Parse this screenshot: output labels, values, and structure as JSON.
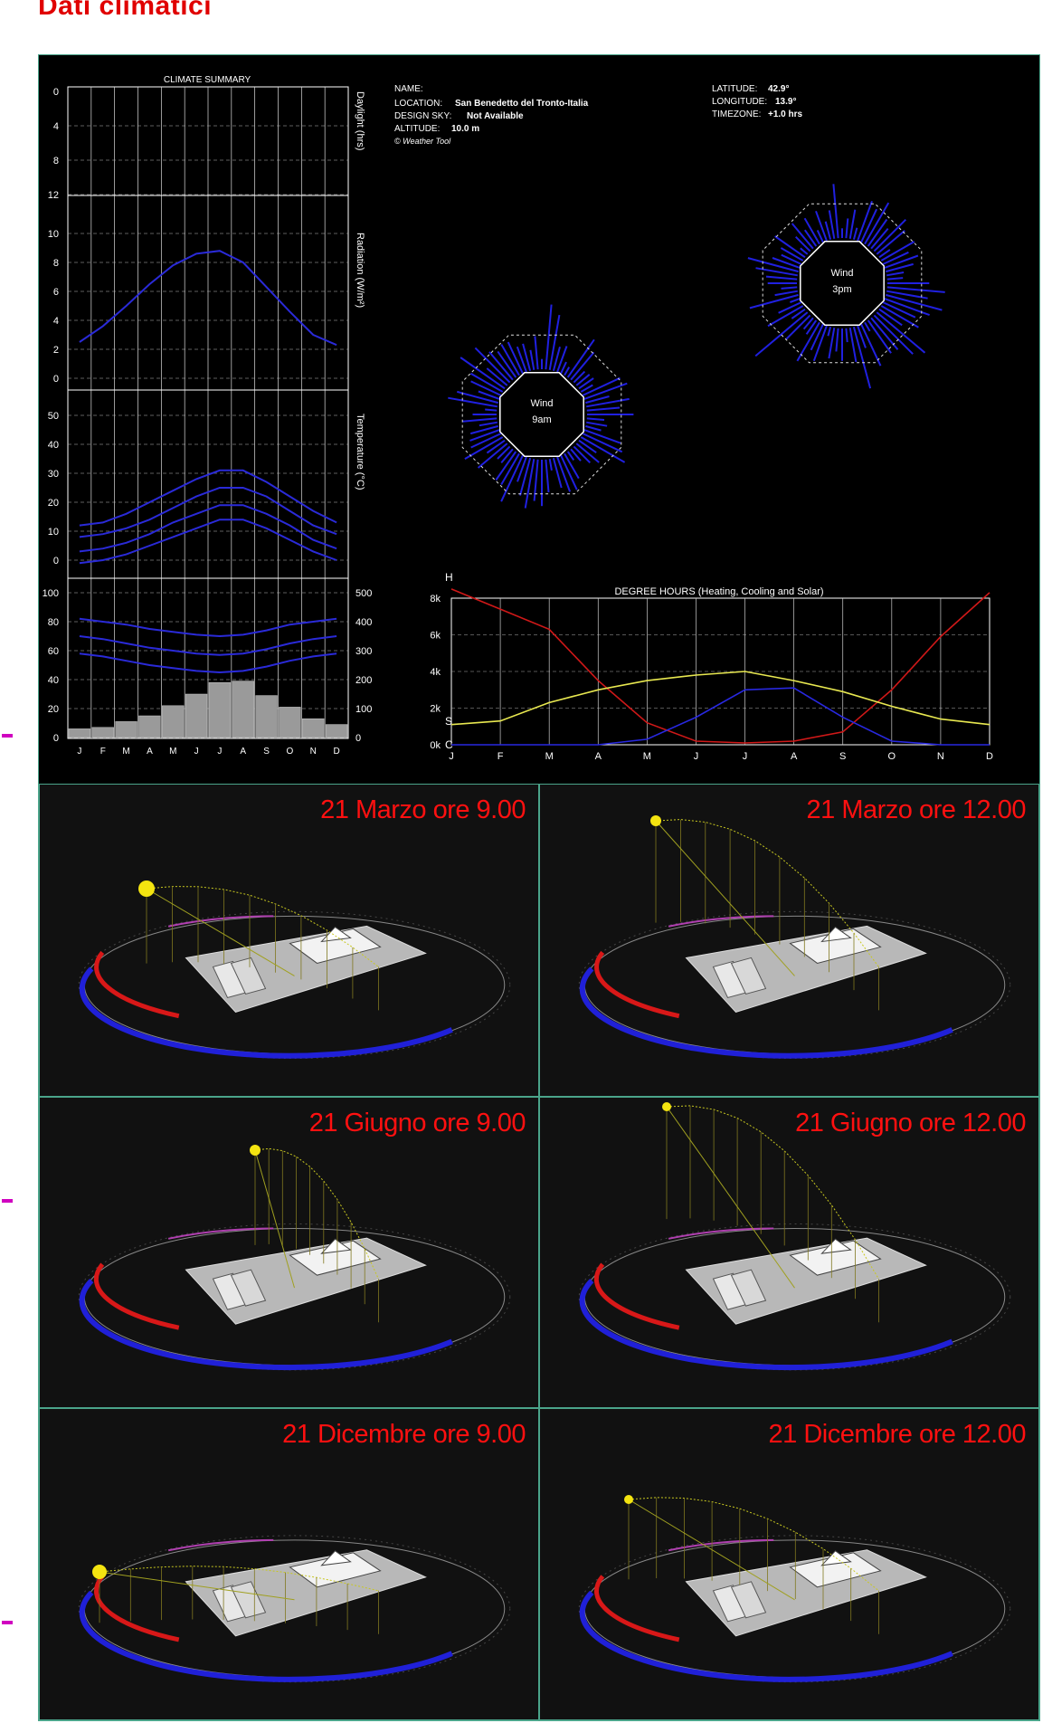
{
  "page": {
    "title": "Dati climatici"
  },
  "info": {
    "name_label": "NAME:",
    "location_label": "LOCATION:",
    "location_value": "San Benedetto del Tronto-Italia",
    "design_sky_label": "DESIGN SKY:",
    "design_sky_value": "Not Available",
    "altitude_label": "ALTITUDE:",
    "altitude_value": "10.0 m",
    "credit": "© Weather Tool",
    "latitude_label": "LATITUDE:",
    "latitude_value": "42.9°",
    "longitude_label": "LONGITUDE:",
    "longitude_value": "13.9°",
    "timezone_label": "TIMEZONE:",
    "timezone_value": "+1.0 hrs"
  },
  "climate_summary": {
    "title": "CLIMATE SUMMARY",
    "daylight_label": "Daylight (hrs)",
    "radiation_label": "Radiation (W/m²)",
    "temperature_label": "Temperature (°C)",
    "months": [
      "J",
      "F",
      "M",
      "A",
      "M",
      "J",
      "J",
      "A",
      "S",
      "O",
      "N",
      "D"
    ],
    "daylight_ticks": [
      "0",
      "4",
      "8",
      "12"
    ],
    "radiation_ticks": [
      "10",
      "8",
      "6",
      "4",
      "2",
      "0"
    ],
    "temperature_ticks": [
      "50",
      "40",
      "30",
      "20",
      "10",
      "0"
    ],
    "humidity_ticks": [
      "100",
      "80",
      "60",
      "40",
      "20",
      "0"
    ],
    "right_ticks": [
      "500",
      "400",
      "300",
      "200",
      "100",
      "0"
    ],
    "radiation_values": [
      2.5,
      3.6,
      5.0,
      6.5,
      7.8,
      8.6,
      8.8,
      8.0,
      6.3,
      4.6,
      3.0,
      2.3
    ],
    "temp_series": [
      {
        "values": [
          12,
          13,
          16,
          20,
          24,
          28,
          31,
          31,
          27,
          22,
          17,
          13
        ]
      },
      {
        "values": [
          8,
          9,
          11,
          14,
          18,
          22,
          25,
          25,
          22,
          17,
          12,
          9
        ]
      },
      {
        "values": [
          3,
          4,
          6,
          9,
          13,
          16,
          19,
          19,
          16,
          12,
          7,
          4
        ]
      },
      {
        "values": [
          -1,
          0,
          2,
          5,
          8,
          11,
          14,
          14,
          11,
          7,
          3,
          0
        ]
      }
    ],
    "humidity_series": [
      {
        "values": [
          82,
          80,
          78,
          75,
          73,
          71,
          70,
          71,
          74,
          78,
          80,
          82
        ]
      },
      {
        "values": [
          70,
          68,
          65,
          62,
          60,
          58,
          57,
          58,
          61,
          65,
          68,
          70
        ]
      },
      {
        "values": [
          58,
          56,
          53,
          50,
          48,
          46,
          45,
          46,
          49,
          53,
          56,
          58
        ]
      }
    ],
    "bar_values": [
      30,
      35,
      55,
      75,
      110,
      150,
      190,
      195,
      145,
      105,
      65,
      45
    ]
  },
  "wind": {
    "morning": {
      "label_line1": "Wind",
      "label_line2": "9am"
    },
    "afternoon": {
      "label_line1": "Wind",
      "label_line2": "3pm"
    }
  },
  "chart_data": {
    "type": "line",
    "title": "DEGREE HOURS (Heating, Cooling and Solar)",
    "categories": [
      "J",
      "F",
      "M",
      "A",
      "M",
      "J",
      "J",
      "A",
      "S",
      "O",
      "N",
      "D"
    ],
    "yticks": [
      "8k",
      "6k",
      "4k",
      "2k",
      "0k"
    ],
    "ylim": [
      0,
      8000
    ],
    "series_markers": {
      "heating": "H",
      "solar": "S",
      "cooling": "C"
    },
    "series": [
      {
        "values": [
          8500,
          7400,
          6300,
          3500,
          1200,
          200,
          100,
          200,
          700,
          3000,
          5900,
          8300
        ],
        "color": "#d01818"
      },
      {
        "values": [
          1100,
          1300,
          2300,
          3000,
          3500,
          3800,
          4000,
          3500,
          2900,
          2100,
          1400,
          1100
        ],
        "color": "#e8e850"
      },
      {
        "values": [
          0,
          0,
          0,
          0,
          300,
          1500,
          3000,
          3100,
          1500,
          200,
          0,
          0
        ],
        "color": "#2828e0"
      }
    ]
  },
  "sun_studies": [
    {
      "label": "21 Marzo ore 9.00"
    },
    {
      "label": "21 Marzo ore 12.00"
    },
    {
      "label": "21 Giugno ore 9.00"
    },
    {
      "label": "21 Giugno ore 12.00"
    },
    {
      "label": "21 Dicembre ore 9.00"
    },
    {
      "label": "21 Dicembre ore 12.00"
    }
  ],
  "colors": {
    "label_red": "#ff1010",
    "frame": "#4aa48a",
    "marker": "#d000c0"
  }
}
